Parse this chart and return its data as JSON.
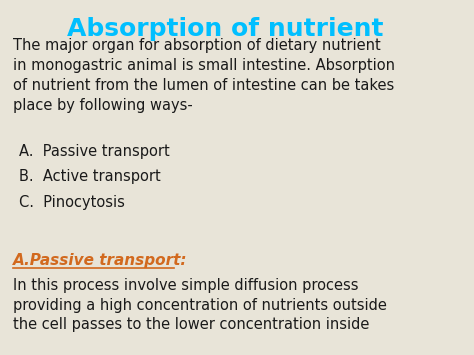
{
  "title": "Absorption of nutrient",
  "title_color": "#00BFFF",
  "background_color": "#E8E4D8",
  "body_text_color": "#1a1a1a",
  "accent_color": "#D2691E",
  "title_fontsize": 18,
  "body_fontsize": 10.5,
  "subtitle_fontsize": 11,
  "intro_text": "The major organ for absorption of dietary nutrient\nin monogastric animal is small intestine. Absorption\nof nutrient from the lumen of intestine can be takes\nplace by following ways-",
  "list_items": [
    "A.  Passive transport",
    "B.  Active transport",
    "C.  Pinocytosis"
  ],
  "subheading": "A.Passive transport:",
  "subheading_color": "#D2691E",
  "body_text": "In this process involve simple diffusion process\nproviding a high concentration of nutrients outside\nthe cell passes to the lower concentration inside"
}
